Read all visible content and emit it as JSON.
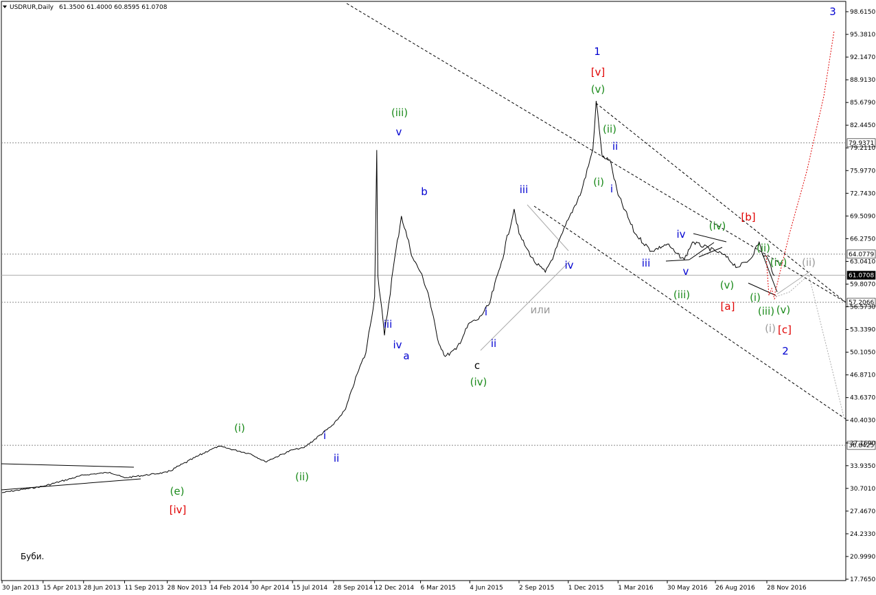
{
  "header": {
    "symbol": "USDRUR,Daily",
    "ohlc": "61.3500 61.4000 60.8595 61.0708",
    "arrow_icon": "triangle-down-icon"
  },
  "note": "Буби.",
  "colors": {
    "blue": "#0000d0",
    "green": "#1a8a1a",
    "red": "#e00000",
    "gray": "#999999",
    "black": "#000000"
  },
  "chart_data": {
    "type": "line",
    "title": "USDRUR,Daily",
    "x_ticks": [
      "30 Jan 2013",
      "15 Apr 2013",
      "28 Jun 2013",
      "11 Sep 2013",
      "28 Nov 2013",
      "14 Feb 2014",
      "30 Apr 2014",
      "15 Jul 2014",
      "28 Sep 2014",
      "12 Dec 2014",
      "6 Mar 2015",
      "4 Jun 2015",
      "2 Sep 2015",
      "1 Dec 2015",
      "1 Mar 2016",
      "30 May 2016",
      "26 Aug 2016",
      "28 Nov 2016"
    ],
    "y_ticks": [
      "98.6150",
      "95.3810",
      "92.1470",
      "88.9130",
      "85.6790",
      "82.4450",
      "79.2110",
      "75.9770",
      "72.7430",
      "69.5090",
      "66.2750",
      "63.0410",
      "59.8070",
      "56.5730",
      "53.3390",
      "50.1050",
      "46.8710",
      "43.6370",
      "40.4030",
      "37.1690",
      "33.9350",
      "30.7010",
      "27.4670",
      "24.2330",
      "20.9990",
      "17.7650"
    ],
    "y_range": [
      17.765,
      98.615
    ],
    "series": [
      {
        "values": [
          [
            "30 Jan 2013",
            30.1
          ],
          [
            "15 Apr 2013",
            31.0
          ],
          [
            "28 Jun 2013",
            32.6
          ],
          [
            "15 Aug 2013",
            33.0
          ],
          [
            "11 Sep 2013",
            32.2
          ],
          [
            "28 Nov 2013",
            33.0
          ],
          [
            "14 Feb 2014",
            36.2
          ],
          [
            "3 Mar 2014",
            36.7
          ],
          [
            "30 Apr 2014",
            35.6
          ],
          [
            "26 May 2014",
            34.5
          ],
          [
            "15 Jul 2014",
            36.2
          ],
          [
            "5 Aug 2014",
            36.5
          ],
          [
            "28 Sep 2014",
            39.8
          ],
          [
            "20 Oct 2014",
            42.0
          ],
          [
            "10 Nov 2014",
            47.0
          ],
          [
            "26 Nov 2014",
            50.0
          ],
          [
            "12 Dec 2014",
            58.0
          ],
          [
            "16 Dec 2014",
            78.9
          ],
          [
            "18 Dec 2014",
            61.0
          ],
          [
            "30 Dec 2014",
            52.5
          ],
          [
            "15 Jan 2015",
            62.0
          ],
          [
            "30 Jan 2015",
            69.5
          ],
          [
            "20 Feb 2015",
            63.5
          ],
          [
            "6 Mar 2015",
            61.5
          ],
          [
            "20 Mar 2015",
            58.5
          ],
          [
            "6 Apr 2015",
            52.0
          ],
          [
            "20 Apr 2015",
            49.5
          ],
          [
            "10 May 2015",
            50.5
          ],
          [
            "4 Jun 2015",
            54.3
          ],
          [
            "20 Jun 2015",
            54.8
          ],
          [
            "10 Jul 2015",
            57.0
          ],
          [
            "1 Aug 2015",
            63.0
          ],
          [
            "24 Aug 2015",
            70.5
          ],
          [
            "2 Sep 2015",
            67.0
          ],
          [
            "15 Sep 2015",
            65.0
          ],
          [
            "30 Sep 2015",
            63.0
          ],
          [
            "20 Oct 2015",
            61.5
          ],
          [
            "5 Nov 2015",
            64.0
          ],
          [
            "1 Dec 2015",
            69.0
          ],
          [
            "25 Dec 2015",
            73.0
          ],
          [
            "15 Jan 2016",
            79.0
          ],
          [
            "21 Jan 2016",
            85.9
          ],
          [
            "1 Feb 2016",
            78.0
          ],
          [
            "15 Feb 2016",
            77.5
          ],
          [
            "1 Mar 2016",
            72.5
          ],
          [
            "1 Apr 2016",
            67.0
          ],
          [
            "1 May 2016",
            64.5
          ],
          [
            "30 May 2016",
            65.5
          ],
          [
            "15 Jun 2016",
            64.2
          ],
          [
            "30 Jun 2016",
            63.3
          ],
          [
            "15 Jul 2016",
            65.8
          ],
          [
            "26 Aug 2016",
            64.5
          ],
          [
            "10 Sep 2016",
            64.0
          ],
          [
            "5 Oct 2016",
            62.2
          ],
          [
            "28 Oct 2016",
            63.3
          ],
          [
            "14 Nov 2016",
            65.8
          ],
          [
            "20 Nov 2016",
            64.0
          ],
          [
            "28 Nov 2016",
            63.7
          ],
          [
            "12 Dec 2016",
            61.0
          ]
        ]
      }
    ],
    "horizontal_levels": [
      "79.9371",
      "64.0779",
      "61.0708",
      "57.2066",
      "36.8425"
    ],
    "current_price": "61.0708",
    "grid": false
  },
  "wave_labels": [
    {
      "text": "3",
      "color": "blue"
    },
    {
      "text": "1",
      "color": "blue"
    },
    {
      "text": "[v]",
      "color": "red"
    },
    {
      "text": "(v)",
      "color": "green"
    },
    {
      "text": "(ii)",
      "color": "green"
    },
    {
      "text": "ii",
      "color": "blue"
    },
    {
      "text": "(i)",
      "color": "green"
    },
    {
      "text": "i",
      "color": "blue"
    },
    {
      "text": "(iii)",
      "color": "green"
    },
    {
      "text": "v",
      "color": "blue"
    },
    {
      "text": "b",
      "color": "blue"
    },
    {
      "text": "iii",
      "color": "blue"
    },
    {
      "text": "iv",
      "color": "blue"
    },
    {
      "text": "a",
      "color": "blue"
    },
    {
      "text": "c",
      "color": "black"
    },
    {
      "text": "(iv)",
      "color": "green"
    },
    {
      "text": "i",
      "color": "blue"
    },
    {
      "text": "ii",
      "color": "blue"
    },
    {
      "text": "iii",
      "color": "blue"
    },
    {
      "text": "iv",
      "color": "blue"
    },
    {
      "text": "или",
      "color": "gray"
    },
    {
      "text": "(i)",
      "color": "green"
    },
    {
      "text": "(ii)",
      "color": "green"
    },
    {
      "text": "i",
      "color": "blue"
    },
    {
      "text": "ii",
      "color": "blue"
    },
    {
      "text": "(e)",
      "color": "green"
    },
    {
      "text": "[iv]",
      "color": "red"
    },
    {
      "text": "iii",
      "color": "blue"
    },
    {
      "text": "iv",
      "color": "blue"
    },
    {
      "text": "v",
      "color": "blue"
    },
    {
      "text": "(iii)",
      "color": "green"
    },
    {
      "text": "(iv)",
      "color": "green"
    },
    {
      "text": "(v)",
      "color": "green"
    },
    {
      "text": "[b]",
      "color": "red"
    },
    {
      "text": "[a]",
      "color": "red"
    },
    {
      "text": "(ii)",
      "color": "green"
    },
    {
      "text": "(iv)",
      "color": "green"
    },
    {
      "text": "(ii)",
      "color": "gray"
    },
    {
      "text": "(i)",
      "color": "green"
    },
    {
      "text": "(iii)",
      "color": "green"
    },
    {
      "text": "(v)",
      "color": "green"
    },
    {
      "text": "(i)",
      "color": "gray"
    },
    {
      "text": "[c]",
      "color": "red"
    },
    {
      "text": "2",
      "color": "blue"
    }
  ]
}
